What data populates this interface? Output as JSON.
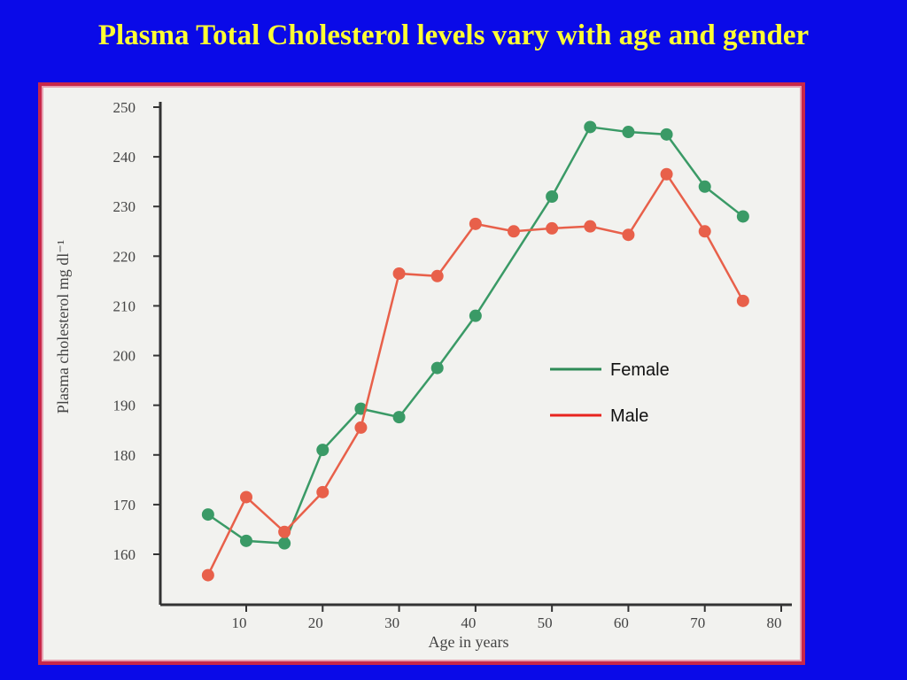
{
  "slide": {
    "title": "Plasma Total Cholesterol levels vary with age and gender"
  },
  "chart_data": {
    "type": "line",
    "title": "",
    "xlabel": "Age in years",
    "ylabel": "Plasma cholesterol mg dl⁻¹",
    "xlim": [
      5,
      80
    ],
    "ylim": [
      150,
      250
    ],
    "x_ticks": [
      10,
      20,
      30,
      40,
      50,
      60,
      70,
      80
    ],
    "x_tick_labels": [
      "10",
      "20",
      "30",
      "40",
      "50",
      "60",
      "70",
      "80"
    ],
    "y_ticks": [
      160,
      170,
      180,
      190,
      200,
      210,
      220,
      230,
      240,
      250
    ],
    "y_tick_labels": [
      "160",
      "170",
      "180",
      "190",
      "200",
      "210",
      "220",
      "230",
      "240",
      "250"
    ],
    "grid": false,
    "legend_position": "right",
    "series": [
      {
        "name": "Female",
        "color": "#3a9a66",
        "legend_color": "#2e8b57",
        "x": [
          5,
          10,
          15,
          20,
          25,
          30,
          35,
          40,
          50,
          55,
          60,
          65,
          70,
          75
        ],
        "y": [
          168,
          162.7,
          162.2,
          181,
          189.3,
          187.6,
          197.5,
          208,
          232,
          246,
          245,
          244.5,
          234,
          228
        ]
      },
      {
        "name": "Male",
        "color": "#e8604a",
        "legend_color": "#e8241e",
        "x": [
          5,
          10,
          15,
          20,
          25,
          30,
          35,
          40,
          45,
          50,
          55,
          60,
          65,
          70,
          75
        ],
        "y": [
          155.8,
          171.5,
          164.5,
          172.5,
          185.5,
          216.5,
          216,
          226.5,
          225,
          225.6,
          226,
          224.3,
          236.5,
          225,
          211
        ]
      }
    ]
  }
}
